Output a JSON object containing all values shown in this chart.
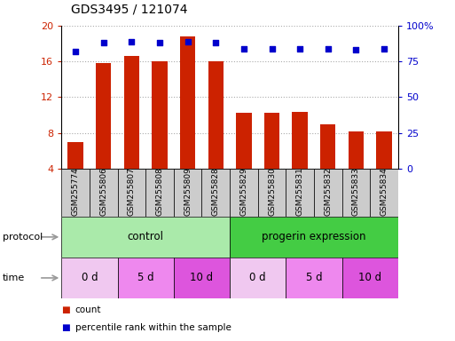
{
  "title": "GDS3495 / 121074",
  "samples": [
    "GSM255774",
    "GSM255806",
    "GSM255807",
    "GSM255808",
    "GSM255809",
    "GSM255828",
    "GSM255829",
    "GSM255830",
    "GSM255831",
    "GSM255832",
    "GSM255833",
    "GSM255834"
  ],
  "bar_values": [
    7.0,
    15.8,
    16.6,
    16.0,
    18.8,
    16.0,
    10.3,
    10.3,
    10.4,
    9.0,
    8.2,
    8.2
  ],
  "dot_values": [
    82,
    88,
    89,
    88,
    89,
    88,
    84,
    84,
    84,
    84,
    83,
    84
  ],
  "ylim_left": [
    4,
    20
  ],
  "ylim_right": [
    0,
    100
  ],
  "yticks_left": [
    4,
    8,
    12,
    16,
    20
  ],
  "yticks_right": [
    0,
    25,
    50,
    75,
    100
  ],
  "ytick_labels_right": [
    "0",
    "25",
    "50",
    "75",
    "100%"
  ],
  "bar_color": "#cc2200",
  "dot_color": "#0000cc",
  "grid_color": "#aaaaaa",
  "bg_color": "#ffffff",
  "plot_bg": "#ffffff",
  "protocol_groups": [
    {
      "label": "control",
      "start": 0,
      "end": 6,
      "color": "#aaeaaa"
    },
    {
      "label": "progerin expression",
      "start": 6,
      "end": 12,
      "color": "#44cc44"
    }
  ],
  "time_groups": [
    {
      "label": "0 d",
      "start": 0,
      "end": 2,
      "color": "#f0c8f0"
    },
    {
      "label": "5 d",
      "start": 2,
      "end": 4,
      "color": "#ee88ee"
    },
    {
      "label": "10 d",
      "start": 4,
      "end": 6,
      "color": "#dd55dd"
    },
    {
      "label": "0 d",
      "start": 6,
      "end": 8,
      "color": "#f0c8f0"
    },
    {
      "label": "5 d",
      "start": 8,
      "end": 10,
      "color": "#ee88ee"
    },
    {
      "label": "10 d",
      "start": 10,
      "end": 12,
      "color": "#dd55dd"
    }
  ],
  "legend_items": [
    {
      "label": "count",
      "color": "#cc2200"
    },
    {
      "label": "percentile rank within the sample",
      "color": "#0000cc"
    }
  ],
  "tick_label_color_left": "#cc2200",
  "tick_label_color_right": "#0000cc",
  "sample_box_color": "#cccccc",
  "protocol_row_label": "protocol",
  "time_row_label": "time",
  "arrow_color": "#999999"
}
